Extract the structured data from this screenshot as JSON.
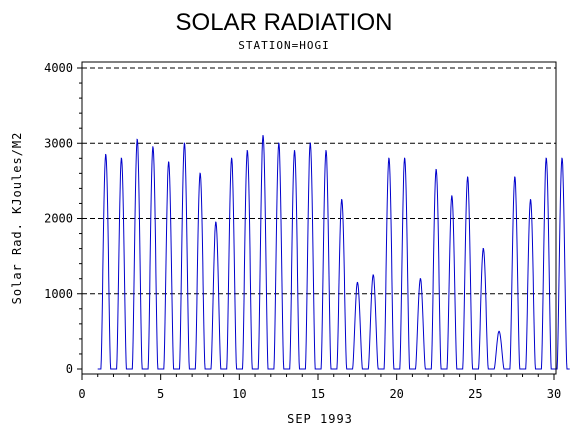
{
  "chart_data": {
    "type": "line",
    "title": "SOLAR RADIATION",
    "subtitle": "STATION=HOGI",
    "xlabel": "SEP 1993",
    "ylabel": "Solar Rad. KJoules/M2",
    "xlim": [
      0,
      30
    ],
    "ylim": [
      0,
      4000
    ],
    "x_ticks": [
      0,
      5,
      10,
      15,
      20,
      25,
      30
    ],
    "y_ticks": [
      0,
      1000,
      2000,
      3000,
      4000
    ],
    "grid": "horizontal dashed",
    "line_color": "#0000cc",
    "daily_peaks": [
      {
        "day": 1,
        "peak": 2850
      },
      {
        "day": 2,
        "peak": 2800
      },
      {
        "day": 3,
        "peak": 3050
      },
      {
        "day": 4,
        "peak": 2950
      },
      {
        "day": 5,
        "peak": 2750
      },
      {
        "day": 6,
        "peak": 3000
      },
      {
        "day": 7,
        "peak": 2600
      },
      {
        "day": 8,
        "peak": 1950
      },
      {
        "day": 9,
        "peak": 2800
      },
      {
        "day": 10,
        "peak": 2900
      },
      {
        "day": 11,
        "peak": 3100
      },
      {
        "day": 12,
        "peak": 3000
      },
      {
        "day": 13,
        "peak": 2900
      },
      {
        "day": 14,
        "peak": 3000
      },
      {
        "day": 15,
        "peak": 2900
      },
      {
        "day": 16,
        "peak": 2250
      },
      {
        "day": 17,
        "peak": 1150
      },
      {
        "day": 18,
        "peak": 1250
      },
      {
        "day": 19,
        "peak": 2800
      },
      {
        "day": 20,
        "peak": 2800
      },
      {
        "day": 21,
        "peak": 1200
      },
      {
        "day": 22,
        "peak": 2650
      },
      {
        "day": 23,
        "peak": 2300
      },
      {
        "day": 24,
        "peak": 2550
      },
      {
        "day": 25,
        "peak": 1600
      },
      {
        "day": 26,
        "peak": 500
      },
      {
        "day": 27,
        "peak": 2550
      },
      {
        "day": 28,
        "peak": 2250
      },
      {
        "day": 29,
        "peak": 2800
      },
      {
        "day": 30,
        "peak": 2800
      }
    ]
  }
}
